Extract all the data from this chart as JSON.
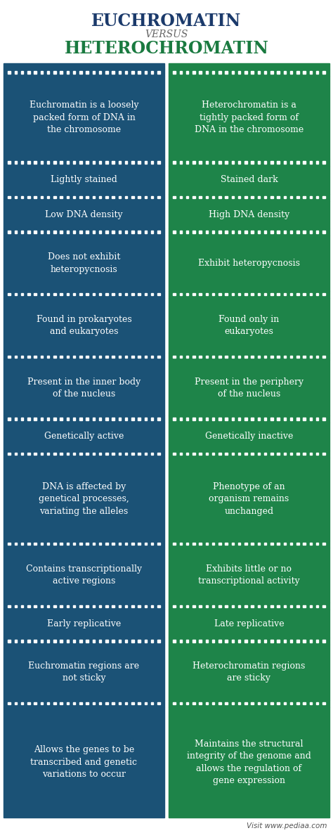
{
  "title_left": "EUCHROMATIN",
  "title_versus": "VERSUS",
  "title_right": "HETEROCHROMATIN",
  "color_left": "#1b5276",
  "color_right": "#1e8449",
  "title_color_left": "#1b3a6b",
  "title_color_right": "#1a7a40",
  "bg_color": "#ffffff",
  "rows": [
    {
      "left": "Euchromatin is a loosely\npacked form of DNA in\nthe chromosome",
      "right": "Heterochromatin is a\ntightly packed form of\nDNA in the chromosome",
      "lines": 3
    },
    {
      "left": "Lightly stained",
      "right": "Stained dark",
      "lines": 1
    },
    {
      "left": "Low DNA density",
      "right": "High DNA density",
      "lines": 1
    },
    {
      "left": "Does not exhibit\nheteropycnosis",
      "right": "Exhibit heteropycnosis",
      "lines": 2
    },
    {
      "left": "Found in prokaryotes\nand eukaryotes",
      "right": "Found only in\neukaryotes",
      "lines": 2
    },
    {
      "left": "Present in the inner body\nof the nucleus",
      "right": "Present in the periphery\nof the nucleus",
      "lines": 2
    },
    {
      "left": "Genetically active",
      "right": "Genetically inactive",
      "lines": 1
    },
    {
      "left": "DNA is affected by\ngenetical processes,\nvariating the alleles",
      "right": "Phenotype of an\norganism remains\nunchanged",
      "lines": 3
    },
    {
      "left": "Contains transcriptionally\nactive regions",
      "right": "Exhibits little or no\ntranscriptional activity",
      "lines": 2
    },
    {
      "left": "Early replicative",
      "right": "Late replicative",
      "lines": 1
    },
    {
      "left": "Euchromatin regions are\nnot sticky",
      "right": "Heterochromatin regions\nare sticky",
      "lines": 2
    },
    {
      "left": "Allows the genes to be\ntranscribed and genetic\nvariations to occur",
      "right": "Maintains the structural\nintegrity of the genome and\nallows the regulation of\ngene expression",
      "lines": 4
    }
  ],
  "footer": "Visit www.pediaa.com",
  "font_size_title": 17,
  "font_size_versus": 10,
  "font_size_body": 9,
  "font_size_footer": 7.5
}
